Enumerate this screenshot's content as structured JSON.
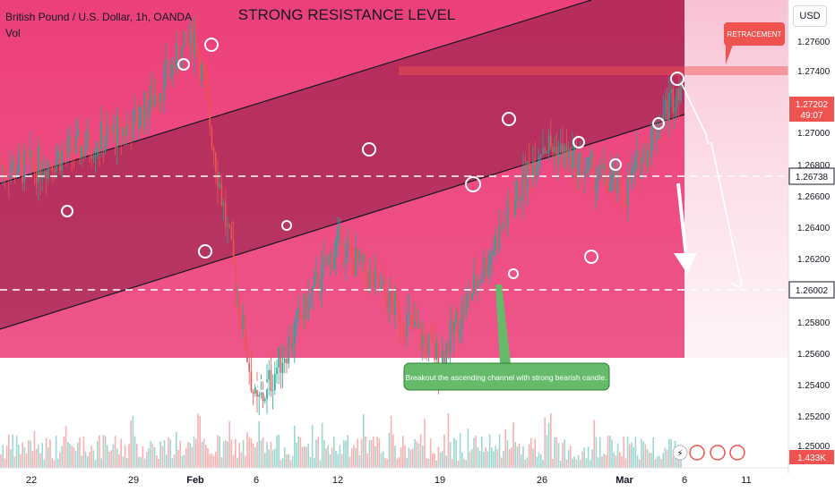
{
  "header": {
    "symbol_line": "British Pound / U.S. Dollar, 1h, OANDA",
    "volume_label": "Vol",
    "currency_button": "USD"
  },
  "annotations": {
    "title": "STRONG RESISTANCE LEVEL",
    "retracement": "RETRACEMENT",
    "breakout_note": "Breakout the ascending channel with strong bearish candle."
  },
  "price_scale": {
    "ticks": [
      "1.27600",
      "1.27400",
      "1.27000",
      "1.26800",
      "1.26600",
      "1.26400",
      "1.26200",
      "1.25800",
      "1.25600",
      "1.25400",
      "1.25200",
      "1.25000"
    ],
    "current_price": "1.27202",
    "countdown": "49:07",
    "level_labels": [
      "1.26738",
      "1.26002"
    ],
    "volume_value": "1.433K"
  },
  "time_axis": {
    "labels": [
      "22",
      "29",
      "Feb",
      "6",
      "12",
      "19",
      "26",
      "Mar",
      "6",
      "11"
    ]
  },
  "colors": {
    "up": "#26a69a",
    "down": "#ef5350",
    "zone": "#e91e63",
    "channel": "#9c2150",
    "label_bg": "#ef5350",
    "note_bg": "#66bb6a"
  },
  "chart_data": {
    "type": "candlestick",
    "symbol": "GBP/USD",
    "timeframe": "1h",
    "yrange": [
      1.2495,
      1.2775
    ],
    "price_path": [
      [
        "22",
        1.2675
      ],
      [
        "29",
        1.27
      ],
      [
        "Feb",
        1.2755
      ],
      [
        "6",
        1.253
      ],
      [
        "12",
        1.263
      ],
      [
        "19",
        1.256
      ],
      [
        "26",
        1.269
      ],
      [
        "Mar",
        1.266
      ],
      [
        "6",
        1.2732
      ]
    ],
    "levels": [
      {
        "name": "resistance",
        "value": 1.274
      },
      {
        "name": "support 1",
        "value": 1.26738
      },
      {
        "name": "support 2",
        "value": 1.26002
      }
    ],
    "current_price": 1.27202
  }
}
